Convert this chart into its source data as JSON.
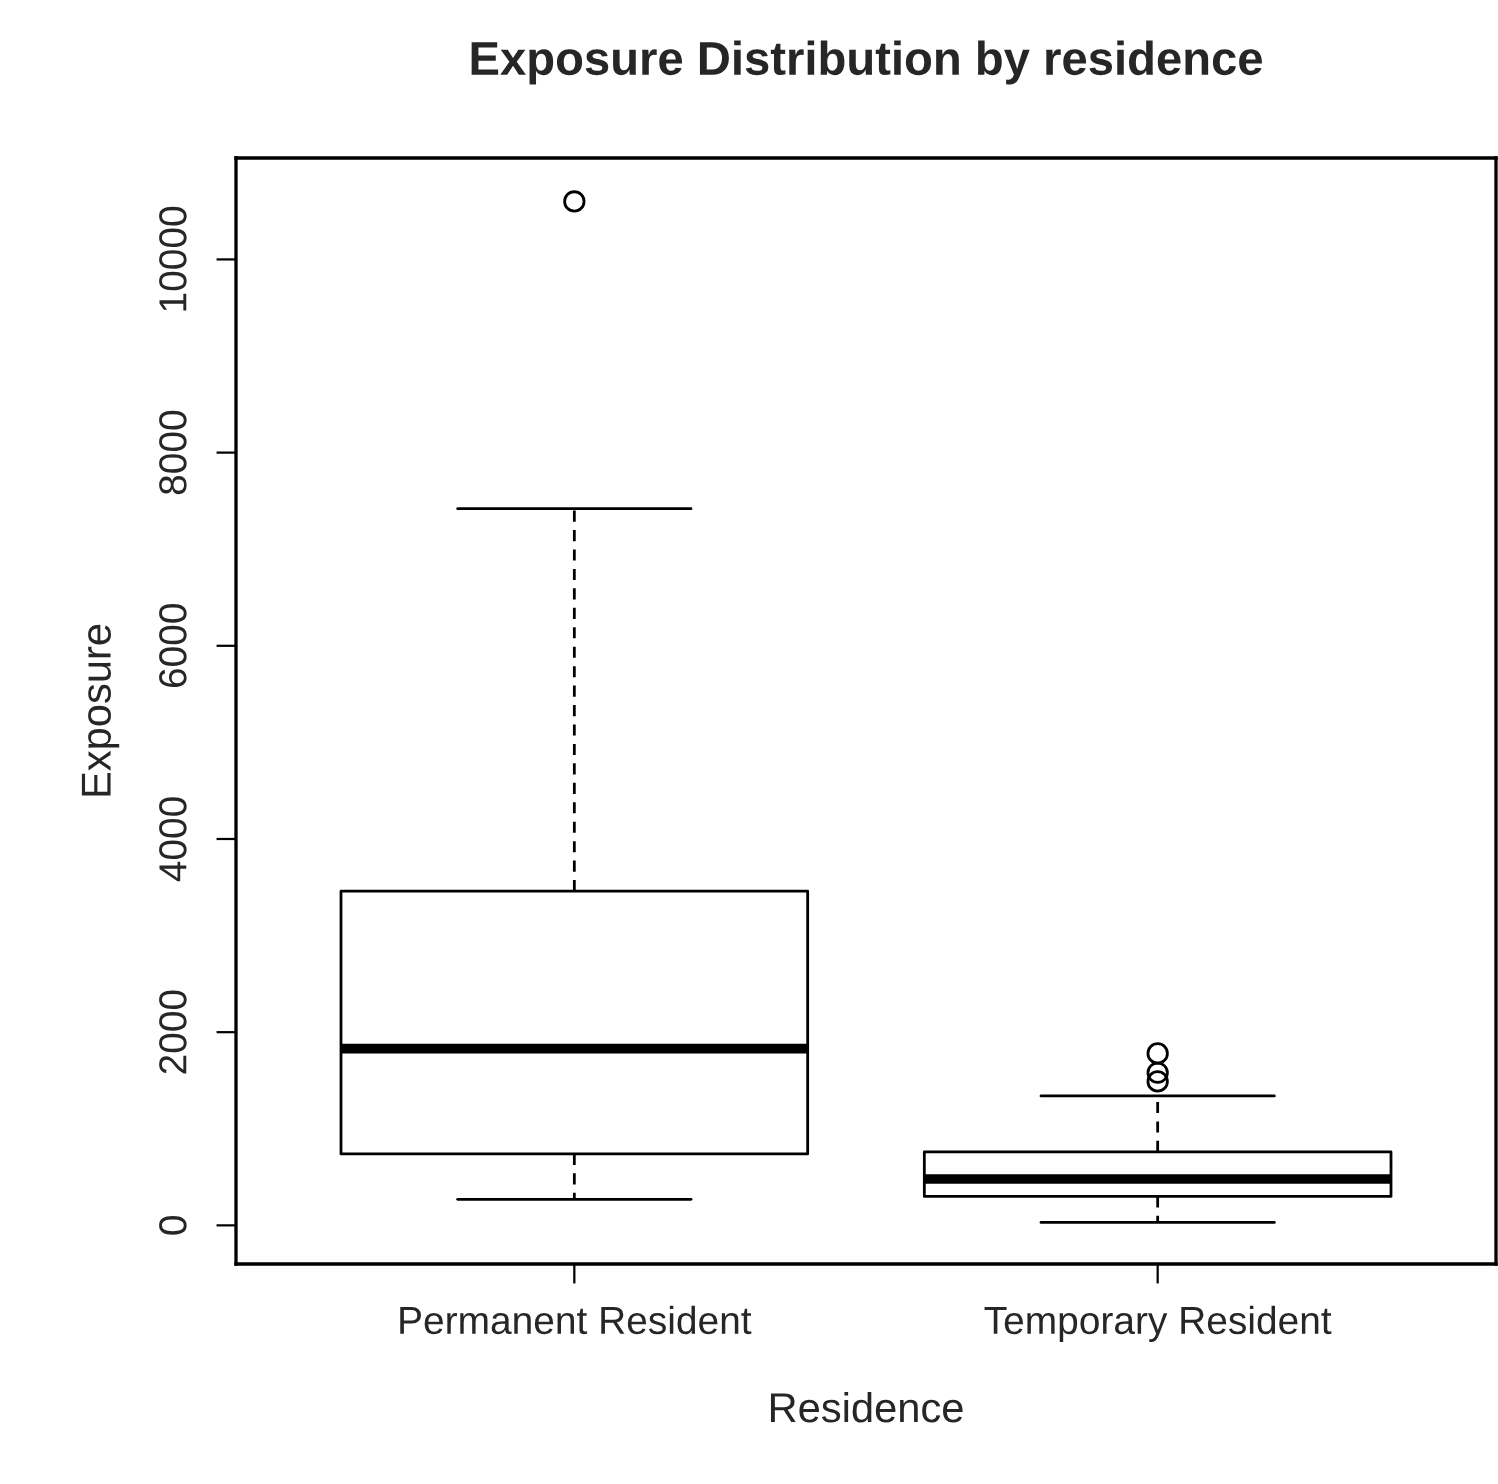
{
  "chart_data": {
    "type": "box",
    "title": "Exposure Distribution by residence",
    "xlabel": "Residence",
    "ylabel": "Exposure",
    "categories": [
      "Permanent Resident",
      "Temporary Resident"
    ],
    "boxes": [
      {
        "low": 270,
        "q1": 740,
        "median": 1830,
        "q3": 3460,
        "high": 7420,
        "outliers": [
          10600
        ]
      },
      {
        "low": 30,
        "q1": 300,
        "median": 480,
        "q3": 760,
        "high": 1340,
        "outliers": [
          1490,
          1580,
          1780
        ]
      }
    ],
    "ylim": [
      -400,
      11050
    ],
    "yticks": [
      0,
      2000,
      4000,
      6000,
      8000,
      10000
    ],
    "grid": false
  }
}
